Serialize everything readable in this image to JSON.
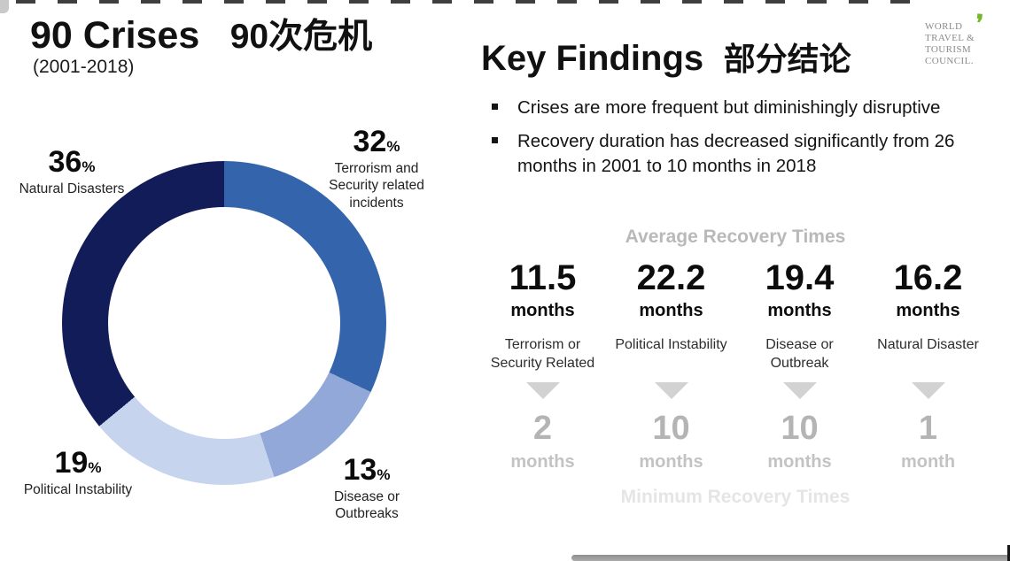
{
  "left_panel": {
    "title_en": "90 Crises",
    "title_zh": "90次危机",
    "subtitle": "(2001-2018)"
  },
  "chart_data": {
    "type": "pie",
    "variant": "donut",
    "title": "90 Crises (2001-2018)",
    "start_angle_deg": 0,
    "direction": "clockwise",
    "percent_sign": "%",
    "segments": [
      {
        "label": "Terrorism and Security related incidents",
        "value": 32,
        "color": "#3465ac"
      },
      {
        "label": "Disease or Outbreaks",
        "value": 13,
        "color": "#92a8d8"
      },
      {
        "label": "Political Instability",
        "value": 19,
        "color": "#c7d4ee"
      },
      {
        "label": "Natural Disasters",
        "value": 36,
        "color": "#111c58"
      }
    ]
  },
  "right_panel": {
    "heading_en": "Key Findings",
    "heading_zh": "部分结论",
    "bullets": [
      "Crises are more frequent but diminishingly disruptive",
      "Recovery duration has decreased significantly from 26 months in 2001 to 10 months in 2018"
    ],
    "logo": {
      "line1": "WORLD",
      "line2": "TRAVEL &",
      "line3": "TOURISM",
      "line4": "COUNCIL.",
      "mark": "❜",
      "mark_color": "#76b82a"
    },
    "recovery": {
      "avg_heading": "Average Recovery Times",
      "min_heading": "Minimum Recovery Times",
      "columns": [
        {
          "avg": "11.5",
          "avg_unit": "months",
          "category": "Terrorism or Security Related",
          "min": "2",
          "min_unit": "months"
        },
        {
          "avg": "22.2",
          "avg_unit": "months",
          "category": "Political Instability",
          "min": "10",
          "min_unit": "months"
        },
        {
          "avg": "19.4",
          "avg_unit": "months",
          "category": "Disease or Outbreak",
          "min": "10",
          "min_unit": "months"
        },
        {
          "avg": "16.2",
          "avg_unit": "months",
          "category": "Natural Disaster",
          "min": "1",
          "min_unit": "month"
        }
      ]
    }
  }
}
